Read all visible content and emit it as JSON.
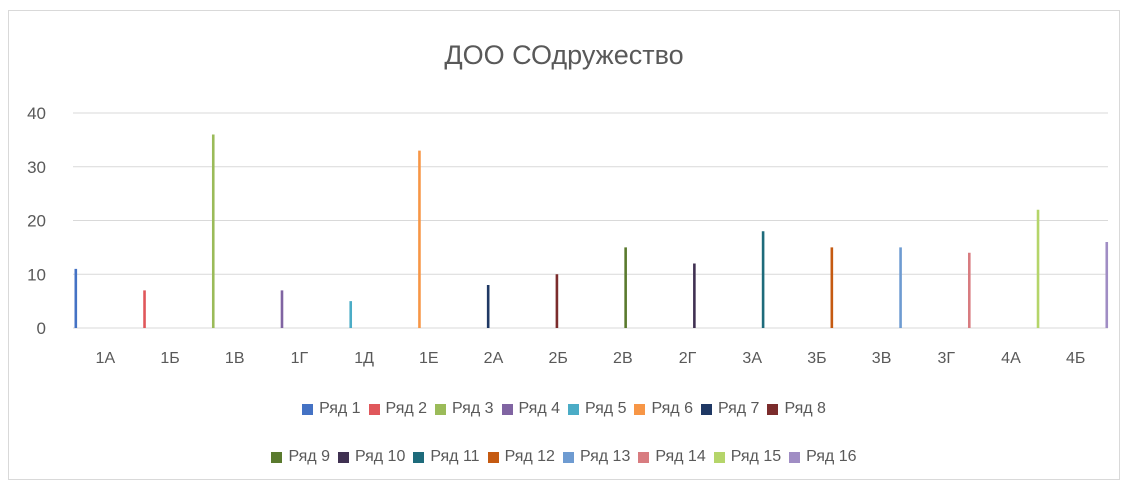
{
  "chart_data": {
    "type": "bar",
    "title": "ДОО СОдружество",
    "categories": [
      "1А",
      "1Б",
      "1В",
      "1Г",
      "1Д",
      "1Е",
      "2А",
      "2Б",
      "2В",
      "2Г",
      "3А",
      "3Б",
      "3В",
      "3Г",
      "4А",
      "4Б"
    ],
    "ylim": [
      0,
      40
    ],
    "yticks": [
      0,
      10,
      20,
      30,
      40
    ],
    "grid": true,
    "legend_position": "bottom",
    "series": [
      {
        "name": "Ряд 1",
        "color": "#4472C4",
        "values": [
          11,
          null,
          null,
          null,
          null,
          null,
          null,
          null,
          null,
          null,
          null,
          null,
          null,
          null,
          null,
          null
        ]
      },
      {
        "name": "Ряд 2",
        "color": "#E0575B",
        "values": [
          null,
          7,
          null,
          null,
          null,
          null,
          null,
          null,
          null,
          null,
          null,
          null,
          null,
          null,
          null,
          null
        ]
      },
      {
        "name": "Ряд 3",
        "color": "#9BBB59",
        "values": [
          null,
          null,
          36,
          null,
          null,
          null,
          null,
          null,
          null,
          null,
          null,
          null,
          null,
          null,
          null,
          null
        ]
      },
      {
        "name": "Ряд 4",
        "color": "#8064A2",
        "values": [
          null,
          null,
          null,
          7,
          null,
          null,
          null,
          null,
          null,
          null,
          null,
          null,
          null,
          null,
          null,
          null
        ]
      },
      {
        "name": "Ряд 5",
        "color": "#4BACC6",
        "values": [
          null,
          null,
          null,
          null,
          5,
          null,
          null,
          null,
          null,
          null,
          null,
          null,
          null,
          null,
          null,
          null
        ]
      },
      {
        "name": "Ряд 6",
        "color": "#F79646",
        "values": [
          null,
          null,
          null,
          null,
          null,
          33,
          null,
          null,
          null,
          null,
          null,
          null,
          null,
          null,
          null,
          null
        ]
      },
      {
        "name": "Ряд 7",
        "color": "#1F3864",
        "values": [
          null,
          null,
          null,
          null,
          null,
          null,
          8,
          null,
          null,
          null,
          null,
          null,
          null,
          null,
          null,
          null
        ]
      },
      {
        "name": "Ряд 8",
        "color": "#7B2C2C",
        "values": [
          null,
          null,
          null,
          null,
          null,
          null,
          null,
          10,
          null,
          null,
          null,
          null,
          null,
          null,
          null,
          null
        ]
      },
      {
        "name": "Ряд 9",
        "color": "#5A7A2E",
        "values": [
          null,
          null,
          null,
          null,
          null,
          null,
          null,
          null,
          15,
          null,
          null,
          null,
          null,
          null,
          null,
          null
        ]
      },
      {
        "name": "Ряд 10",
        "color": "#403152",
        "values": [
          null,
          null,
          null,
          null,
          null,
          null,
          null,
          null,
          null,
          12,
          null,
          null,
          null,
          null,
          null,
          null
        ]
      },
      {
        "name": "Ряд 11",
        "color": "#1E6B7B",
        "values": [
          null,
          null,
          null,
          null,
          null,
          null,
          null,
          null,
          null,
          null,
          18,
          null,
          null,
          null,
          null,
          null
        ]
      },
      {
        "name": "Ряд 12",
        "color": "#C55A11",
        "values": [
          null,
          null,
          null,
          null,
          null,
          null,
          null,
          null,
          null,
          null,
          null,
          15,
          null,
          null,
          null,
          null
        ]
      },
      {
        "name": "Ряд 13",
        "color": "#6E9BD1",
        "values": [
          null,
          null,
          null,
          null,
          null,
          null,
          null,
          null,
          null,
          null,
          null,
          null,
          15,
          null,
          null,
          null
        ]
      },
      {
        "name": "Ряд 14",
        "color": "#D87C80",
        "values": [
          null,
          null,
          null,
          null,
          null,
          null,
          null,
          null,
          null,
          null,
          null,
          null,
          null,
          14,
          null,
          null
        ]
      },
      {
        "name": "Ряд 15",
        "color": "#B5D56A",
        "values": [
          null,
          null,
          null,
          null,
          null,
          null,
          null,
          null,
          null,
          null,
          null,
          null,
          null,
          null,
          22,
          null
        ]
      },
      {
        "name": "Ряд 16",
        "color": "#A08DC4",
        "values": [
          null,
          null,
          null,
          null,
          null,
          null,
          null,
          null,
          null,
          null,
          null,
          null,
          null,
          null,
          null,
          16
        ]
      }
    ]
  }
}
